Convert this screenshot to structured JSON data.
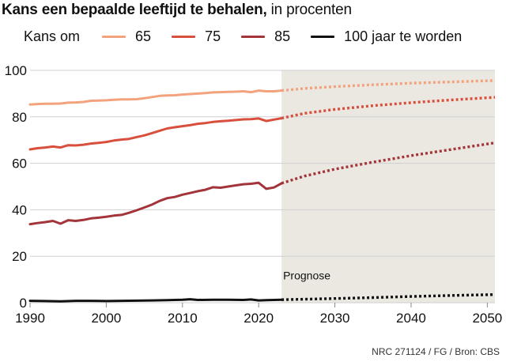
{
  "title": "Kans een bepaalde leeftijd te behalen,",
  "subtitle": "in procenten",
  "legend_lead": "Kans om",
  "source": "NRC 271124 / FG / Bron: CBS",
  "chart_data": {
    "type": "line",
    "xlim": [
      1990,
      2051
    ],
    "ylim": [
      0,
      100
    ],
    "x_ticks": [
      1990,
      2000,
      2010,
      2020,
      2030,
      2040,
      2050
    ],
    "y_ticks": [
      0,
      20,
      40,
      60,
      80,
      100
    ],
    "forecast_start": 2023,
    "forecast_label": "Prognose",
    "series": [
      {
        "name": "65",
        "color": "#f2a37e",
        "historic": [
          [
            1990,
            85.3
          ],
          [
            1991,
            85.5
          ],
          [
            1992,
            85.6
          ],
          [
            1993,
            85.6
          ],
          [
            1994,
            85.7
          ],
          [
            1995,
            86.1
          ],
          [
            1996,
            86.2
          ],
          [
            1997,
            86.4
          ],
          [
            1998,
            86.9
          ],
          [
            1999,
            87.0
          ],
          [
            2000,
            87.1
          ],
          [
            2001,
            87.3
          ],
          [
            2002,
            87.5
          ],
          [
            2003,
            87.5
          ],
          [
            2004,
            87.6
          ],
          [
            2005,
            88.0
          ],
          [
            2006,
            88.5
          ],
          [
            2007,
            89.0
          ],
          [
            2008,
            89.2
          ],
          [
            2009,
            89.3
          ],
          [
            2010,
            89.6
          ],
          [
            2011,
            89.8
          ],
          [
            2012,
            90.0
          ],
          [
            2013,
            90.2
          ],
          [
            2014,
            90.5
          ],
          [
            2015,
            90.6
          ],
          [
            2016,
            90.7
          ],
          [
            2017,
            90.8
          ],
          [
            2018,
            91.0
          ],
          [
            2019,
            90.6
          ],
          [
            2020,
            91.3
          ],
          [
            2021,
            91.0
          ],
          [
            2022,
            91.0
          ],
          [
            2023,
            91.3
          ]
        ],
        "forecast": [
          [
            2023,
            91.3
          ],
          [
            2026,
            92.2
          ],
          [
            2030,
            93.0
          ],
          [
            2035,
            93.8
          ],
          [
            2040,
            94.5
          ],
          [
            2045,
            95.0
          ],
          [
            2051,
            95.6
          ]
        ]
      },
      {
        "name": "75",
        "color": "#d94f3d",
        "historic": [
          [
            1990,
            66.0
          ],
          [
            1991,
            66.5
          ],
          [
            1992,
            66.8
          ],
          [
            1993,
            67.2
          ],
          [
            1994,
            66.8
          ],
          [
            1995,
            67.8
          ],
          [
            1996,
            67.7
          ],
          [
            1997,
            68.0
          ],
          [
            1998,
            68.5
          ],
          [
            1999,
            68.8
          ],
          [
            2000,
            69.2
          ],
          [
            2001,
            69.8
          ],
          [
            2002,
            70.2
          ],
          [
            2003,
            70.5
          ],
          [
            2004,
            71.3
          ],
          [
            2005,
            72.0
          ],
          [
            2006,
            73.0
          ],
          [
            2007,
            74.0
          ],
          [
            2008,
            75.0
          ],
          [
            2009,
            75.5
          ],
          [
            2010,
            76.0
          ],
          [
            2011,
            76.4
          ],
          [
            2012,
            77.0
          ],
          [
            2013,
            77.3
          ],
          [
            2014,
            77.8
          ],
          [
            2015,
            78.1
          ],
          [
            2016,
            78.3
          ],
          [
            2017,
            78.6
          ],
          [
            2018,
            78.9
          ],
          [
            2019,
            79.0
          ],
          [
            2020,
            79.3
          ],
          [
            2021,
            78.2
          ],
          [
            2022,
            78.8
          ],
          [
            2023,
            79.4
          ]
        ],
        "forecast": [
          [
            2023,
            79.4
          ],
          [
            2026,
            81.5
          ],
          [
            2030,
            83.2
          ],
          [
            2035,
            84.8
          ],
          [
            2040,
            86.1
          ],
          [
            2045,
            87.2
          ],
          [
            2051,
            88.4
          ]
        ]
      },
      {
        "name": "85",
        "color": "#a3343a",
        "historic": [
          [
            1990,
            33.8
          ],
          [
            1991,
            34.3
          ],
          [
            1992,
            34.7
          ],
          [
            1993,
            35.2
          ],
          [
            1994,
            34.0
          ],
          [
            1995,
            35.5
          ],
          [
            1996,
            35.2
          ],
          [
            1997,
            35.6
          ],
          [
            1998,
            36.3
          ],
          [
            1999,
            36.6
          ],
          [
            2000,
            37.0
          ],
          [
            2001,
            37.5
          ],
          [
            2002,
            37.8
          ],
          [
            2003,
            38.7
          ],
          [
            2004,
            39.8
          ],
          [
            2005,
            41.0
          ],
          [
            2006,
            42.2
          ],
          [
            2007,
            43.8
          ],
          [
            2008,
            45.0
          ],
          [
            2009,
            45.5
          ],
          [
            2010,
            46.5
          ],
          [
            2011,
            47.2
          ],
          [
            2012,
            48.0
          ],
          [
            2013,
            48.6
          ],
          [
            2014,
            49.7
          ],
          [
            2015,
            49.5
          ],
          [
            2016,
            50.0
          ],
          [
            2017,
            50.5
          ],
          [
            2018,
            51.0
          ],
          [
            2019,
            51.2
          ],
          [
            2020,
            51.6
          ],
          [
            2021,
            49.0
          ],
          [
            2022,
            49.6
          ],
          [
            2023,
            51.4
          ]
        ],
        "forecast": [
          [
            2023,
            51.4
          ],
          [
            2026,
            54.5
          ],
          [
            2030,
            57.5
          ],
          [
            2035,
            60.5
          ],
          [
            2040,
            63.3
          ],
          [
            2045,
            65.8
          ],
          [
            2051,
            68.8
          ]
        ]
      },
      {
        "name": "100 jaar te worden",
        "color": "#111111",
        "historic": [
          [
            1990,
            0.8
          ],
          [
            1992,
            0.7
          ],
          [
            1994,
            0.6
          ],
          [
            1996,
            0.8
          ],
          [
            1998,
            0.8
          ],
          [
            2000,
            0.7
          ],
          [
            2002,
            0.8
          ],
          [
            2004,
            0.9
          ],
          [
            2006,
            1.0
          ],
          [
            2008,
            1.1
          ],
          [
            2010,
            1.3
          ],
          [
            2011,
            1.5
          ],
          [
            2012,
            1.2
          ],
          [
            2014,
            1.3
          ],
          [
            2016,
            1.3
          ],
          [
            2018,
            1.2
          ],
          [
            2019,
            1.4
          ],
          [
            2020,
            1.0
          ],
          [
            2021,
            1.1
          ],
          [
            2022,
            1.2
          ],
          [
            2023,
            1.3
          ]
        ],
        "forecast": [
          [
            2023,
            1.3
          ],
          [
            2030,
            1.8
          ],
          [
            2035,
            2.2
          ],
          [
            2040,
            2.7
          ],
          [
            2045,
            3.1
          ],
          [
            2051,
            3.5
          ]
        ]
      }
    ]
  }
}
